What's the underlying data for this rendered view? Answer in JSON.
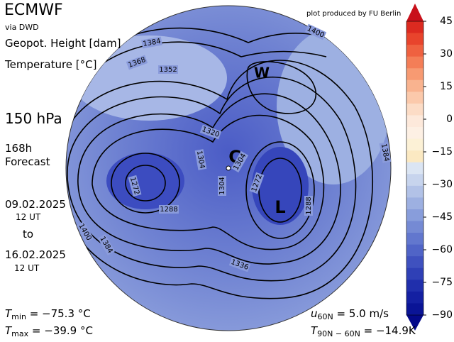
{
  "header": {
    "title": "ECMWF",
    "source": "via DWD",
    "credit": "plot produced by FU Berlin"
  },
  "fields": [
    "Geopot. Height [dam]",
    "Temperature [°C]"
  ],
  "level": "150 hPa",
  "forecast": {
    "lead": "168h",
    "label": "Forecast",
    "start_date": "09.02.2025",
    "start_time": "12 UT",
    "to": "to",
    "end_date": "16.02.2025",
    "end_time": "12 UT"
  },
  "stats": {
    "tmin": {
      "symbol": "T",
      "sub": "min",
      "text": " = −75.3 °C"
    },
    "tmax": {
      "symbol": "T",
      "sub": "max",
      "text": " = −39.9 °C"
    },
    "u60": {
      "symbol": "u",
      "sub": "60N",
      "text": " = 5.0 m/s"
    },
    "tgrad": {
      "symbol": "T",
      "sub": "90N − 60N",
      "text": " = −14.9K"
    }
  },
  "markers": [
    "W",
    "C",
    "L"
  ],
  "contour_labels": [
    "1384",
    "1368",
    "1352",
    "1400",
    "1320",
    "1304",
    "1304",
    "1304",
    "1272",
    "1272",
    "1288",
    "1288",
    "1336",
    "1384",
    "1384",
    "1400"
  ],
  "colorbar": {
    "ticks": [
      45,
      30,
      15,
      0,
      {
        "value": -15,
        "label": "−15"
      },
      {
        "value": -30,
        "label": "−30"
      },
      {
        "value": -45,
        "label": "−45"
      },
      {
        "value": -60,
        "label": "−60"
      },
      {
        "value": -75,
        "label": "−75"
      },
      {
        "value": -90,
        "label": "−90"
      }
    ],
    "colors": [
      "#c8101a",
      "#dc2a20",
      "#e8442c",
      "#ef6140",
      "#f47e57",
      "#f79a72",
      "#f9b38f",
      "#fbc9ab",
      "#fcdcc6",
      "#fde9db",
      "#fdf0e4",
      "#fcf1d6",
      "#fbe9c2",
      "#dbe5f3",
      "#c7d4ed",
      "#b2c2e7",
      "#9db0e1",
      "#889ddb",
      "#758ad4",
      "#6277ce",
      "#5064c7",
      "#3f51bf",
      "#2f40b6",
      "#202fac",
      "#1420a2",
      "#0a1496",
      "#04098a"
    ]
  }
}
